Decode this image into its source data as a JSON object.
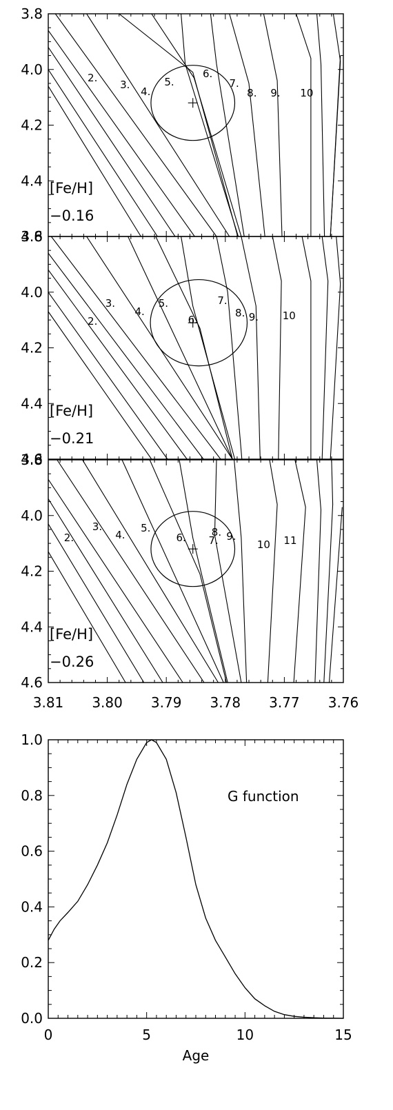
{
  "chart_data": [
    {
      "type": "line",
      "panel": "isochrones",
      "x_axis": {
        "ticks": [
          "3.81",
          "3.80",
          "3.79",
          "3.78",
          "3.77",
          "3.76"
        ],
        "xlim": [
          3.81,
          3.76
        ]
      },
      "y_axis": {
        "ticks": [
          "3.8",
          "4.0",
          "4.2",
          "4.4",
          "4.6"
        ],
        "ylim": [
          3.8,
          4.6
        ]
      },
      "panels": [
        {
          "feh_label": "[Fe/H]",
          "feh_value": "−0.16",
          "ellipse": {
            "center_x": 3.7855,
            "center_y": 4.12,
            "semi_x": 0.0071,
            "semi_y": 0.135
          },
          "marker": {
            "x": 3.7855,
            "y": 4.12
          },
          "isochrone_labels": [
            {
              "text": "2.",
              "x": 3.8025,
              "y": 4.03
            },
            {
              "text": "3.",
              "x": 3.797,
              "y": 4.055
            },
            {
              "text": "4.",
              "x": 3.7935,
              "y": 4.08
            },
            {
              "text": "5.",
              "x": 3.7895,
              "y": 4.045
            },
            {
              "text": "6.",
              "x": 3.783,
              "y": 4.015
            },
            {
              "text": "7.",
              "x": 3.7785,
              "y": 4.05
            },
            {
              "text": "8.",
              "x": 3.7755,
              "y": 4.085
            },
            {
              "text": "9.",
              "x": 3.7715,
              "y": 4.085
            },
            {
              "text": "10",
              "x": 3.7662,
              "y": 4.085
            }
          ],
          "isochrones": [
            {
              "points": [
                [
                  3.81,
                  3.92
                ],
                [
                  3.7885,
                  4.6
                ]
              ]
            },
            {
              "points": [
                [
                  3.81,
                  3.86
                ],
                [
                  3.7852,
                  4.6
                ]
              ]
            },
            {
              "points": [
                [
                  3.8088,
                  3.8
                ],
                [
                  3.7815,
                  4.6
                ]
              ]
            },
            {
              "points": [
                [
                  3.8035,
                  3.8
                ],
                [
                  3.7793,
                  4.6
                ]
              ]
            },
            {
              "points": [
                [
                  3.798,
                  3.8
                ],
                [
                  3.7855,
                  4.01
                ],
                [
                  3.7779,
                  4.6
                ]
              ]
            },
            {
              "points": [
                [
                  3.7925,
                  3.8
                ],
                [
                  3.7853,
                  4.03
                ],
                [
                  3.7773,
                  4.6
                ]
              ]
            },
            {
              "points": [
                [
                  3.7875,
                  3.8
                ],
                [
                  3.7868,
                  3.98
                ],
                [
                  3.7778,
                  4.6
                ]
              ]
            },
            {
              "points": [
                [
                  3.7825,
                  3.8
                ],
                [
                  3.7815,
                  3.98
                ],
                [
                  3.7768,
                  4.6
                ]
              ]
            },
            {
              "points": [
                [
                  3.7793,
                  3.8
                ],
                [
                  3.776,
                  4.05
                ],
                [
                  3.7733,
                  4.6
                ]
              ]
            },
            {
              "points": [
                [
                  3.7735,
                  3.8
                ],
                [
                  3.7712,
                  4.04
                ],
                [
                  3.7704,
                  4.6
                ]
              ]
            },
            {
              "points": [
                [
                  3.768,
                  3.8
                ],
                [
                  3.7655,
                  3.96
                ],
                [
                  3.7655,
                  4.6
                ]
              ]
            },
            {
              "points": [
                [
                  3.7645,
                  3.8
                ],
                [
                  3.7638,
                  3.98
                ],
                [
                  3.7632,
                  4.6
                ]
              ]
            },
            {
              "points": [
                [
                  3.7617,
                  3.8
                ],
                [
                  3.7605,
                  3.97
                ],
                [
                  3.7622,
                  4.6
                ]
              ]
            },
            {
              "points": [
                [
                  3.7605,
                  3.95
                ],
                [
                  3.7622,
                  4.6
                ]
              ]
            },
            {
              "points": [
                [
                  3.81,
                  4.0
                ],
                [
                  3.7915,
                  4.6
                ]
              ]
            },
            {
              "points": [
                [
                  3.81,
                  4.06
                ],
                [
                  3.7943,
                  4.6
                ]
              ]
            }
          ]
        },
        {
          "feh_label": "[Fe/H]",
          "feh_value": "−0.21",
          "ellipse": {
            "center_x": 3.7845,
            "center_y": 4.11,
            "semi_x": 0.0082,
            "semi_y": 0.155
          },
          "marker": {
            "x": 3.7855,
            "y": 4.11
          },
          "isochrone_labels": [
            {
              "text": "2.",
              "x": 3.8025,
              "y": 4.105
            },
            {
              "text": "3.",
              "x": 3.7995,
              "y": 4.04
            },
            {
              "text": "4.",
              "x": 3.7945,
              "y": 4.07
            },
            {
              "text": "5.",
              "x": 3.7905,
              "y": 4.04
            },
            {
              "text": "6.",
              "x": 3.7855,
              "y": 4.1
            },
            {
              "text": "7.",
              "x": 3.7805,
              "y": 4.03
            },
            {
              "text": "8.",
              "x": 3.7775,
              "y": 4.075
            },
            {
              "text": "9.",
              "x": 3.7752,
              "y": 4.09
            },
            {
              "text": "10",
              "x": 3.7692,
              "y": 4.085
            }
          ],
          "isochrones": [
            {
              "points": [
                [
                  3.81,
                  3.92
                ],
                [
                  3.7865,
                  4.6
                ]
              ]
            },
            {
              "points": [
                [
                  3.81,
                  3.86
                ],
                [
                  3.7837,
                  4.6
                ]
              ]
            },
            {
              "points": [
                [
                  3.8095,
                  3.8
                ],
                [
                  3.7808,
                  4.6
                ]
              ]
            },
            {
              "points": [
                [
                  3.8035,
                  3.8
                ],
                [
                  3.7788,
                  4.6
                ]
              ]
            },
            {
              "points": [
                [
                  3.7965,
                  3.8
                ],
                [
                  3.7788,
                  4.6
                ]
              ]
            },
            {
              "points": [
                [
                  3.7918,
                  3.8
                ],
                [
                  3.7843,
                  4.13
                ],
                [
                  3.7788,
                  4.6
                ]
              ]
            },
            {
              "points": [
                [
                  3.7875,
                  3.8
                ],
                [
                  3.7855,
                  4.05
                ],
                [
                  3.7784,
                  4.6
                ]
              ]
            },
            {
              "points": [
                [
                  3.7815,
                  3.8
                ],
                [
                  3.7796,
                  4.0
                ],
                [
                  3.7772,
                  4.6
                ]
              ]
            },
            {
              "points": [
                [
                  3.7773,
                  3.8
                ],
                [
                  3.7748,
                  4.05
                ],
                [
                  3.7741,
                  4.6
                ]
              ]
            },
            {
              "points": [
                [
                  3.772,
                  3.8
                ],
                [
                  3.7705,
                  3.96
                ],
                [
                  3.771,
                  4.6
                ]
              ]
            },
            {
              "points": [
                [
                  3.767,
                  3.8
                ],
                [
                  3.7655,
                  3.96
                ],
                [
                  3.7655,
                  4.6
                ]
              ]
            },
            {
              "points": [
                [
                  3.7636,
                  3.8
                ],
                [
                  3.7626,
                  3.96
                ],
                [
                  3.7636,
                  4.6
                ]
              ]
            },
            {
              "points": [
                [
                  3.7612,
                  3.8
                ],
                [
                  3.7605,
                  3.97
                ],
                [
                  3.7622,
                  4.6
                ]
              ]
            },
            {
              "points": [
                [
                  3.81,
                  4.0
                ],
                [
                  3.7898,
                  4.6
                ]
              ]
            },
            {
              "points": [
                [
                  3.81,
                  4.07
                ],
                [
                  3.7925,
                  4.6
                ]
              ]
            }
          ]
        },
        {
          "feh_label": "[Fe/H]",
          "feh_value": "−0.26",
          "ellipse": {
            "center_x": 3.7855,
            "center_y": 4.12,
            "semi_x": 0.0071,
            "semi_y": 0.135
          },
          "marker": {
            "x": 3.7855,
            "y": 4.12
          },
          "isochrone_labels": [
            {
              "text": "2.",
              "x": 3.8065,
              "y": 4.08
            },
            {
              "text": "3.",
              "x": 3.8017,
              "y": 4.04
            },
            {
              "text": "4.",
              "x": 3.7978,
              "y": 4.07
            },
            {
              "text": "5.",
              "x": 3.7935,
              "y": 4.045
            },
            {
              "text": "6.",
              "x": 3.7875,
              "y": 4.08
            },
            {
              "text": "7.",
              "x": 3.782,
              "y": 4.09
            },
            {
              "text": "8.",
              "x": 3.7815,
              "y": 4.06
            },
            {
              "text": "9.",
              "x": 3.779,
              "y": 4.075
            },
            {
              "text": "10",
              "x": 3.7735,
              "y": 4.105
            },
            {
              "text": "11",
              "x": 3.769,
              "y": 4.09
            }
          ],
          "isochrones": [
            {
              "points": [
                [
                  3.81,
                  3.94
                ],
                [
                  3.7906,
                  4.6
                ]
              ]
            },
            {
              "points": [
                [
                  3.81,
                  3.87
                ],
                [
                  3.7872,
                  4.6
                ]
              ]
            },
            {
              "points": [
                [
                  3.8085,
                  3.8
                ],
                [
                  3.7836,
                  4.6
                ]
              ]
            },
            {
              "points": [
                [
                  3.8042,
                  3.8
                ],
                [
                  3.7812,
                  4.6
                ]
              ]
            },
            {
              "points": [
                [
                  3.7975,
                  3.8
                ],
                [
                  3.7803,
                  4.6
                ]
              ]
            },
            {
              "points": [
                [
                  3.7928,
                  3.8
                ],
                [
                  3.7843,
                  4.21
                ],
                [
                  3.7798,
                  4.6
                ]
              ]
            },
            {
              "points": [
                [
                  3.7878,
                  3.8
                ],
                [
                  3.7855,
                  4.08
                ],
                [
                  3.7796,
                  4.6
                ]
              ]
            },
            {
              "points": [
                [
                  3.7815,
                  3.8
                ],
                [
                  3.7818,
                  4.07
                ],
                [
                  3.7773,
                  4.6
                ]
              ]
            },
            {
              "points": [
                [
                  3.7785,
                  3.8
                ],
                [
                  3.7773,
                  4.08
                ],
                [
                  3.7764,
                  4.6
                ]
              ]
            },
            {
              "points": [
                [
                  3.7725,
                  3.8
                ],
                [
                  3.7712,
                  3.96
                ],
                [
                  3.7728,
                  4.6
                ]
              ]
            },
            {
              "points": [
                [
                  3.7682,
                  3.8
                ],
                [
                  3.7664,
                  3.97
                ],
                [
                  3.7684,
                  4.6
                ]
              ]
            },
            {
              "points": [
                [
                  3.7645,
                  3.8
                ],
                [
                  3.7638,
                  3.98
                ],
                [
                  3.7648,
                  4.6
                ]
              ]
            },
            {
              "points": [
                [
                  3.762,
                  3.8
                ],
                [
                  3.7618,
                  3.96
                ],
                [
                  3.7633,
                  4.6
                ]
              ]
            },
            {
              "points": [
                [
                  3.7602,
                  3.97
                ],
                [
                  3.7624,
                  4.6
                ]
              ]
            },
            {
              "points": [
                [
                  3.81,
                  4.03
                ],
                [
                  3.7938,
                  4.6
                ]
              ]
            },
            {
              "points": [
                [
                  3.81,
                  4.13
                ],
                [
                  3.7969,
                  4.6
                ]
              ]
            }
          ]
        }
      ]
    },
    {
      "type": "line",
      "panel": "g-function",
      "annotation": "G function",
      "xlabel": "Age",
      "ylabel": "",
      "xlim": [
        0,
        15
      ],
      "ylim": [
        0,
        1.0
      ],
      "x_ticks": [
        "0",
        "5",
        "10",
        "15"
      ],
      "y_ticks": [
        "0.0",
        "0.2",
        "0.4",
        "0.6",
        "0.8",
        "1.0"
      ],
      "series": [
        {
          "x": [
            0,
            0.3,
            0.6,
            1.0,
            1.5,
            2.0,
            2.5,
            3.0,
            3.5,
            4.0,
            4.5,
            5.0,
            5.25,
            5.5,
            6.0,
            6.5,
            7.0,
            7.5,
            8.0,
            8.5,
            9.0,
            9.5,
            10.0,
            10.5,
            11.0,
            11.5,
            12.0,
            12.5,
            13.0,
            13.5,
            14.0,
            14.5,
            15.0
          ],
          "y": [
            0.28,
            0.32,
            0.35,
            0.38,
            0.42,
            0.48,
            0.55,
            0.63,
            0.73,
            0.84,
            0.93,
            0.99,
            1.0,
            0.99,
            0.93,
            0.81,
            0.65,
            0.48,
            0.36,
            0.28,
            0.22,
            0.16,
            0.11,
            0.07,
            0.045,
            0.025,
            0.013,
            0.007,
            0.004,
            0.002,
            0.001,
            0.0005,
            0.0
          ]
        }
      ]
    }
  ]
}
